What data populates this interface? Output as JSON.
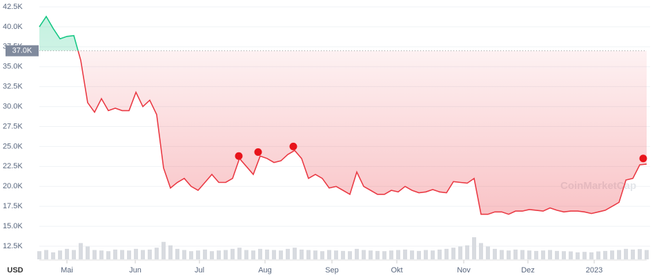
{
  "chart_data": {
    "type": "line",
    "y_unit": "USD",
    "watermark": "CoinMarketCap",
    "values": [
      40.0,
      41.3,
      39.8,
      38.5,
      38.8,
      38.9,
      35.8,
      30.5,
      29.3,
      31.0,
      29.5,
      29.8,
      29.5,
      29.5,
      31.8,
      30.0,
      30.8,
      29.0,
      22.3,
      19.8,
      20.5,
      21.0,
      20.0,
      19.5,
      20.5,
      21.5,
      20.5,
      20.5,
      21.0,
      23.5,
      22.5,
      21.5,
      23.8,
      23.5,
      23.0,
      23.2,
      24.0,
      24.5,
      23.5,
      21.0,
      21.5,
      21.0,
      19.8,
      20.0,
      19.5,
      19.0,
      21.8,
      20.0,
      19.5,
      19.0,
      19.0,
      19.5,
      19.3,
      20.0,
      19.5,
      19.2,
      19.3,
      19.6,
      19.3,
      19.2,
      20.6,
      20.5,
      20.4,
      21.0,
      16.5,
      16.5,
      16.8,
      16.8,
      16.5,
      16.9,
      16.9,
      17.1,
      17.0,
      16.9,
      17.3,
      17.0,
      16.8,
      16.9,
      16.9,
      16.8,
      16.6,
      16.8,
      17.0,
      17.5,
      18.0,
      20.8,
      21.0,
      22.7,
      22.8
    ],
    "volume": [
      35,
      40,
      30,
      38,
      45,
      40,
      70,
      55,
      40,
      38,
      35,
      42,
      40,
      38,
      45,
      40,
      42,
      50,
      75,
      60,
      45,
      40,
      35,
      38,
      42,
      35,
      38,
      40,
      45,
      50,
      40,
      38,
      45,
      42,
      40,
      38,
      45,
      50,
      42,
      40,
      38,
      35,
      40,
      38,
      36,
      35,
      45,
      40,
      38,
      36,
      35,
      38,
      40,
      42,
      38,
      36,
      40,
      38,
      42,
      45,
      50,
      55,
      60,
      95,
      70,
      55,
      45,
      40,
      38,
      42,
      40,
      38,
      36,
      38,
      40,
      36,
      35,
      34,
      30,
      32,
      30,
      34,
      36,
      38,
      40,
      45,
      42,
      44,
      40
    ],
    "up_color": "#16c784",
    "down_color": "#ea3943",
    "baseline": {
      "value": 37,
      "label": "37.0K"
    },
    "markers": {
      "x": [
        28.9,
        31.7,
        36.8,
        87.5
      ],
      "values": [
        23.8,
        24.3,
        25.0,
        23.5
      ],
      "color": "#e8141b"
    },
    "xlim": [
      0,
      88
    ],
    "xticks": [
      {
        "value": 4.0,
        "label": "Mai"
      },
      {
        "value": 13.9,
        "label": "Jun"
      },
      {
        "value": 23.2,
        "label": "Jul"
      },
      {
        "value": 32.7,
        "label": "Aug"
      },
      {
        "value": 42.4,
        "label": "Sep"
      },
      {
        "value": 51.8,
        "label": "Okt"
      },
      {
        "value": 61.5,
        "label": "Nov"
      },
      {
        "value": 70.8,
        "label": "Dez"
      },
      {
        "value": 80.4,
        "label": "2023"
      }
    ],
    "ylim": [
      12.5,
      42.5
    ],
    "yticks": [
      {
        "value": 12.5,
        "label": "12.5K"
      },
      {
        "value": 15,
        "label": "15.0K"
      },
      {
        "value": 17.5,
        "label": "17.5K"
      },
      {
        "value": 20,
        "label": "20.0K"
      },
      {
        "value": 22.5,
        "label": "22.5K"
      },
      {
        "value": 25,
        "label": "25.0K"
      },
      {
        "value": 27.5,
        "label": "27.5K"
      },
      {
        "value": 30,
        "label": "30.0K"
      },
      {
        "value": 32.5,
        "label": "32.5K"
      },
      {
        "value": 35,
        "label": "35.0K"
      },
      {
        "value": 37.5,
        "label": "37.5K"
      },
      {
        "value": 40,
        "label": "40.0K"
      },
      {
        "value": 42.5,
        "label": "42.5K"
      }
    ],
    "grid": true
  }
}
